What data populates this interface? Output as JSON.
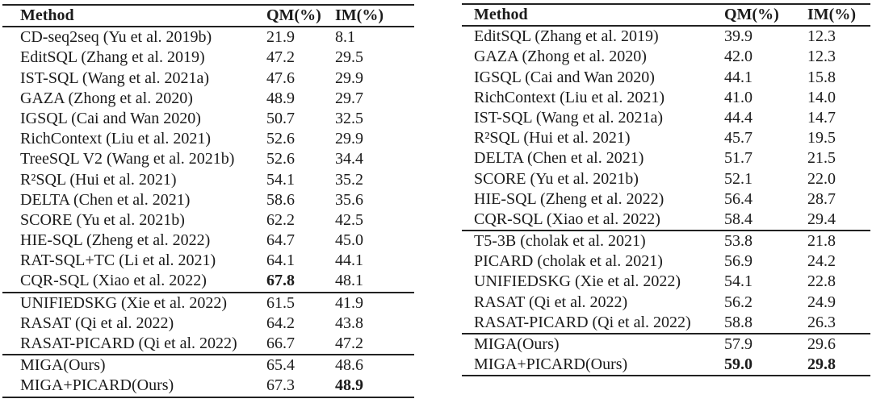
{
  "page": {
    "background_color": "#ffffff",
    "text_color": "#1b1b1b",
    "rule_color": "#222222"
  },
  "tables": [
    {
      "name": "left-results-table",
      "columns": [
        "Method",
        "QM(%)",
        "IM(%)"
      ],
      "groups": [
        {
          "rows": [
            {
              "method": "CD-seq2seq (Yu et al. 2019b)",
              "qm": "21.9",
              "im": "8.1"
            },
            {
              "method": "EditSQL (Zhang et al. 2019)",
              "qm": "47.2",
              "im": "29.5"
            },
            {
              "method": "IST-SQL (Wang et al. 2021a)",
              "qm": "47.6",
              "im": "29.9"
            },
            {
              "method": "GAZA (Zhong et al. 2020)",
              "qm": "48.9",
              "im": "29.7"
            },
            {
              "method": "IGSQL (Cai and Wan 2020)",
              "qm": "50.7",
              "im": "32.5"
            },
            {
              "method": "RichContext (Liu et al. 2021)",
              "qm": "52.6",
              "im": "29.9"
            },
            {
              "method": "TreeSQL V2 (Wang et al. 2021b)",
              "qm": "52.6",
              "im": "34.4"
            },
            {
              "method": "R²SQL (Hui et al. 2021)",
              "qm": "54.1",
              "im": "35.2"
            },
            {
              "method": "DELTA (Chen et al. 2021)",
              "qm": "58.6",
              "im": "35.6"
            },
            {
              "method": "SCORE (Yu et al. 2021b)",
              "qm": "62.2",
              "im": "42.5"
            },
            {
              "method": "HIE-SQL (Zheng et al. 2022)",
              "qm": "64.7",
              "im": "45.0"
            },
            {
              "method": "RAT-SQL+TC (Li et al. 2021)",
              "qm": "64.1",
              "im": "44.1"
            },
            {
              "method": "CQR-SQL (Xiao et al. 2022)",
              "qm": "67.8",
              "im": "48.1",
              "qm_bold": true
            }
          ]
        },
        {
          "rows": [
            {
              "method": "UNIFIEDSKG (Xie et al. 2022)",
              "qm": "61.5",
              "im": "41.9"
            },
            {
              "method": "RASAT (Qi et al. 2022)",
              "qm": "64.2",
              "im": "43.8"
            },
            {
              "method": "RASAT-PICARD (Qi et al. 2022)",
              "qm": "66.7",
              "im": "47.2"
            }
          ]
        },
        {
          "rows": [
            {
              "method": "MIGA(Ours)",
              "qm": "65.4",
              "im": "48.6"
            },
            {
              "method": "MIGA+PICARD(Ours)",
              "qm": "67.3",
              "im": "48.9",
              "im_bold": true
            }
          ]
        }
      ]
    },
    {
      "name": "right-results-table",
      "columns": [
        "Method",
        "QM(%)",
        "IM(%)"
      ],
      "groups": [
        {
          "rows": [
            {
              "method": "EditSQL (Zhang et al. 2019)",
              "qm": "39.9",
              "im": "12.3"
            },
            {
              "method": "GAZA (Zhong et al. 2020)",
              "qm": "42.0",
              "im": "12.3"
            },
            {
              "method": "IGSQL (Cai and Wan 2020)",
              "qm": "44.1",
              "im": "15.8"
            },
            {
              "method": "RichContext (Liu et al. 2021)",
              "qm": "41.0",
              "im": "14.0"
            },
            {
              "method": "IST-SQL (Wang et al. 2021a)",
              "qm": "44.4",
              "im": "14.7"
            },
            {
              "method": "R²SQL (Hui et al. 2021)",
              "qm": "45.7",
              "im": "19.5"
            },
            {
              "method": "DELTA (Chen et al. 2021)",
              "qm": "51.7",
              "im": "21.5"
            },
            {
              "method": "SCORE (Yu et al. 2021b)",
              "qm": "52.1",
              "im": "22.0"
            },
            {
              "method": "HIE-SQL (Zheng et al. 2022)",
              "qm": "56.4",
              "im": "28.7"
            },
            {
              "method": "CQR-SQL (Xiao et al. 2022)",
              "qm": "58.4",
              "im": "29.4"
            }
          ]
        },
        {
          "rows": [
            {
              "method": "T5-3B (cholak et al. 2021)",
              "qm": "53.8",
              "im": "21.8"
            },
            {
              "method": "PICARD (cholak et al. 2021)",
              "qm": "56.9",
              "im": "24.2"
            },
            {
              "method": "UNIFIEDSKG (Xie et al. 2022)",
              "qm": "54.1",
              "im": "22.8"
            },
            {
              "method": "RASAT (Qi et al. 2022)",
              "qm": "56.2",
              "im": "24.9"
            },
            {
              "method": "RASAT-PICARD (Qi et al. 2022)",
              "qm": "58.8",
              "im": "26.3"
            }
          ]
        },
        {
          "rows": [
            {
              "method": "MIGA(Ours)",
              "qm": "57.9",
              "im": "29.6"
            },
            {
              "method": "MIGA+PICARD(Ours)",
              "qm": "59.0",
              "im": "29.8",
              "qm_bold": true,
              "im_bold": true
            }
          ]
        }
      ]
    }
  ]
}
